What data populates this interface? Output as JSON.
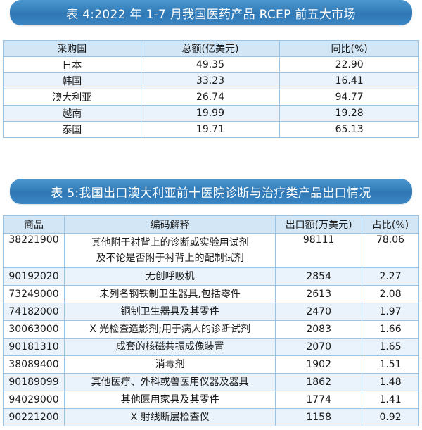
{
  "table4": {
    "title": "表 4:2022 年 1-7 月我国医药产品 RCEP 前五大市场",
    "headers": [
      "采购国",
      "总额(亿美元)",
      "同比(%)"
    ],
    "rows": [
      {
        "country": "日本",
        "total": "49.35",
        "yoy": "22.90"
      },
      {
        "country": "韩国",
        "total": "33.23",
        "yoy": "16.41"
      },
      {
        "country": "澳大利亚",
        "total": "26.74",
        "yoy": "94.77"
      },
      {
        "country": "越南",
        "total": "19.99",
        "yoy": "19.28"
      },
      {
        "country": "泰国",
        "total": "19.71",
        "yoy": "65.13"
      }
    ]
  },
  "table5": {
    "title": "表 5:我国出口澳大利亚前十医院诊断与治疗类产品出口情况",
    "headers": [
      "商品",
      "编码解释",
      "出口额(万美元)",
      "占比(%)"
    ],
    "rows": [
      {
        "code": "38221900",
        "desc_line1": "其他附于衬背上的诊断或实验用试剂",
        "desc_line2": "及不论是否附于衬背上的配制试剂",
        "amount": "98111",
        "share": "78.06"
      },
      {
        "code": "90192020",
        "desc": "无创呼吸机",
        "amount": "2854",
        "share": "2.27"
      },
      {
        "code": "73249000",
        "desc": "未列名钢铁制卫生器具,包括零件",
        "amount": "2613",
        "share": "2.08"
      },
      {
        "code": "74182000",
        "desc": "铜制卫生器具及其零件",
        "amount": "2470",
        "share": "1.97"
      },
      {
        "code": "30063000",
        "desc": "X 光检查造影剂;用于病人的诊断试剂",
        "amount": "2083",
        "share": "1.66"
      },
      {
        "code": "90181310",
        "desc": "成套的核磁共振成像装置",
        "amount": "2070",
        "share": "1.65"
      },
      {
        "code": "38089400",
        "desc": "消毒剂",
        "amount": "1902",
        "share": "1.51"
      },
      {
        "code": "90189099",
        "desc": "其他医疗、外科或兽医用仪器及器具",
        "amount": "1862",
        "share": "1.48"
      },
      {
        "code": "94029000",
        "desc": "其他医用家具及其零件",
        "amount": "1774",
        "share": "1.41"
      },
      {
        "code": "90221200",
        "desc": "X 射线断层检查仪",
        "amount": "1158",
        "share": "0.92"
      }
    ]
  }
}
